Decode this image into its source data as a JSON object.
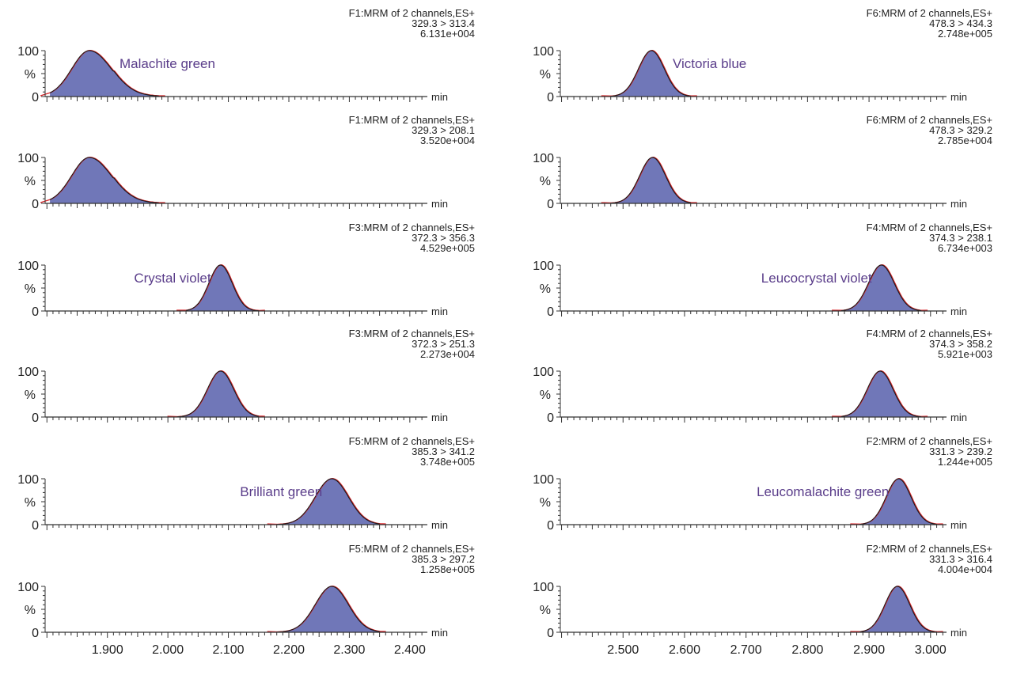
{
  "figure": {
    "y_top_label": "100",
    "y_mid_label": "%",
    "y_zero_label": "0",
    "x_unit_label": "min"
  },
  "colors": {
    "fill": "#7077b8",
    "outline": "#1a1a1a",
    "smooth_trace": "#d8262b",
    "compound_label": "#5a3d8a",
    "axis": "#333333"
  },
  "chart_data": [
    {
      "type": "area",
      "column": "left",
      "row": 0,
      "function": "F1:MRM of 2 channels,ES+",
      "transition": "329.3 > 313.4",
      "intensity": "6.131e+004",
      "compound": "Malachite green",
      "xlim": [
        1.797,
        2.429
      ],
      "ylim": [
        0,
        100
      ],
      "xlabel": "min",
      "ylabel": "%",
      "peak": {
        "apex_min": 1.87,
        "height_pct": 100,
        "start_min": 1.805,
        "end_min": 1.985,
        "tailing": true
      }
    },
    {
      "type": "area",
      "column": "left",
      "row": 1,
      "function": "F1:MRM of 2 channels,ES+",
      "transition": "329.3 > 208.1",
      "intensity": "3.520e+004",
      "compound": "",
      "xlim": [
        1.797,
        2.429
      ],
      "ylim": [
        0,
        100
      ],
      "xlabel": "min",
      "ylabel": "%",
      "peak": {
        "apex_min": 1.87,
        "height_pct": 100,
        "start_min": 1.805,
        "end_min": 1.985,
        "tailing": true
      }
    },
    {
      "type": "area",
      "column": "left",
      "row": 2,
      "function": "F3:MRM of 2 channels,ES+",
      "transition": "372.3 > 356.3",
      "intensity": "4.529e+005",
      "compound": "Crystal violet",
      "xlim": [
        1.797,
        2.429
      ],
      "ylim": [
        0,
        100
      ],
      "xlabel": "min",
      "ylabel": "%",
      "peak": {
        "apex_min": 2.087,
        "height_pct": 100,
        "start_min": 2.03,
        "end_min": 2.15,
        "tailing": false
      }
    },
    {
      "type": "area",
      "column": "left",
      "row": 3,
      "function": "F3:MRM of 2 channels,ES+",
      "transition": "372.3 > 251.3",
      "intensity": "2.273e+004",
      "compound": "",
      "xlim": [
        1.797,
        2.429
      ],
      "ylim": [
        0,
        100
      ],
      "xlabel": "min",
      "ylabel": "%",
      "peak": {
        "apex_min": 2.087,
        "height_pct": 100,
        "start_min": 2.015,
        "end_min": 2.15,
        "tailing": false
      }
    },
    {
      "type": "area",
      "column": "left",
      "row": 4,
      "function": "F5:MRM of 2 channels,ES+",
      "transition": "385.3 > 341.2",
      "intensity": "3.748e+005",
      "compound": "Brilliant green",
      "xlim": [
        1.797,
        2.429
      ],
      "ylim": [
        0,
        100
      ],
      "xlabel": "min",
      "ylabel": "%",
      "peak": {
        "apex_min": 2.271,
        "height_pct": 100,
        "start_min": 2.18,
        "end_min": 2.35,
        "tailing": false
      }
    },
    {
      "type": "area",
      "column": "left",
      "row": 5,
      "function": "F5:MRM of 2 channels,ES+",
      "transition": "385.3 > 297.2",
      "intensity": "1.258e+005",
      "compound": "",
      "xlim": [
        1.797,
        2.429
      ],
      "ylim": [
        0,
        100
      ],
      "xlabel": "min",
      "ylabel": "%",
      "x_ticks": [
        "1.900",
        "2.000",
        "2.100",
        "2.200",
        "2.300",
        "2.400"
      ],
      "peak": {
        "apex_min": 2.271,
        "height_pct": 100,
        "start_min": 2.18,
        "end_min": 2.35,
        "tailing": false
      }
    },
    {
      "type": "area",
      "column": "right",
      "row": 0,
      "function": "F6:MRM of 2 channels,ES+",
      "transition": "478.3 > 434.3",
      "intensity": "2.748e+005",
      "compound": "Victoria blue",
      "xlim": [
        2.398,
        3.026
      ],
      "ylim": [
        0,
        100
      ],
      "xlabel": "min",
      "ylabel": "%",
      "peak": {
        "apex_min": 2.546,
        "height_pct": 100,
        "start_min": 2.48,
        "end_min": 2.61,
        "tailing": false
      }
    },
    {
      "type": "area",
      "column": "right",
      "row": 1,
      "function": "F6:MRM of 2 channels,ES+",
      "transition": "478.3 > 329.2",
      "intensity": "2.785e+004",
      "compound": "",
      "xlim": [
        2.398,
        3.026
      ],
      "ylim": [
        0,
        100
      ],
      "xlabel": "min",
      "ylabel": "%",
      "peak": {
        "apex_min": 2.548,
        "height_pct": 100,
        "start_min": 2.48,
        "end_min": 2.61,
        "tailing": false
      }
    },
    {
      "type": "area",
      "column": "right",
      "row": 2,
      "function": "F4:MRM of 2 channels,ES+",
      "transition": "374.3 > 238.1",
      "intensity": "6.734e+003",
      "compound": "Leucocrystal violet",
      "xlim": [
        2.398,
        3.026
      ],
      "ylim": [
        0,
        100
      ],
      "xlabel": "min",
      "ylabel": "%",
      "peak": {
        "apex_min": 2.92,
        "height_pct": 100,
        "start_min": 2.855,
        "end_min": 2.985,
        "tailing": false
      }
    },
    {
      "type": "area",
      "column": "right",
      "row": 3,
      "function": "F4:MRM of 2 channels,ES+",
      "transition": "374.3 > 358.2",
      "intensity": "5.921e+003",
      "compound": "",
      "xlim": [
        2.398,
        3.026
      ],
      "ylim": [
        0,
        100
      ],
      "xlabel": "min",
      "ylabel": "%",
      "peak": {
        "apex_min": 2.918,
        "height_pct": 100,
        "start_min": 2.855,
        "end_min": 2.985,
        "tailing": false
      }
    },
    {
      "type": "area",
      "column": "right",
      "row": 4,
      "function": "F2:MRM of 2 channels,ES+",
      "transition": "331.3 > 239.2",
      "intensity": "1.244e+005",
      "compound": "Leucomalachite green",
      "xlim": [
        2.398,
        3.026
      ],
      "ylim": [
        0,
        100
      ],
      "xlabel": "min",
      "ylabel": "%",
      "peak": {
        "apex_min": 2.948,
        "height_pct": 100,
        "start_min": 2.885,
        "end_min": 3.01,
        "tailing": false
      }
    },
    {
      "type": "area",
      "column": "right",
      "row": 5,
      "function": "F2:MRM of 2 channels,ES+",
      "transition": "331.3 > 316.4",
      "intensity": "4.004e+004",
      "compound": "",
      "xlim": [
        2.398,
        3.026
      ],
      "ylim": [
        0,
        100
      ],
      "xlabel": "min",
      "ylabel": "%",
      "x_ticks": [
        "2.500",
        "2.600",
        "2.700",
        "2.800",
        "2.900",
        "3.000"
      ],
      "peak": {
        "apex_min": 2.946,
        "height_pct": 100,
        "start_min": 2.885,
        "end_min": 3.01,
        "tailing": false
      }
    }
  ]
}
